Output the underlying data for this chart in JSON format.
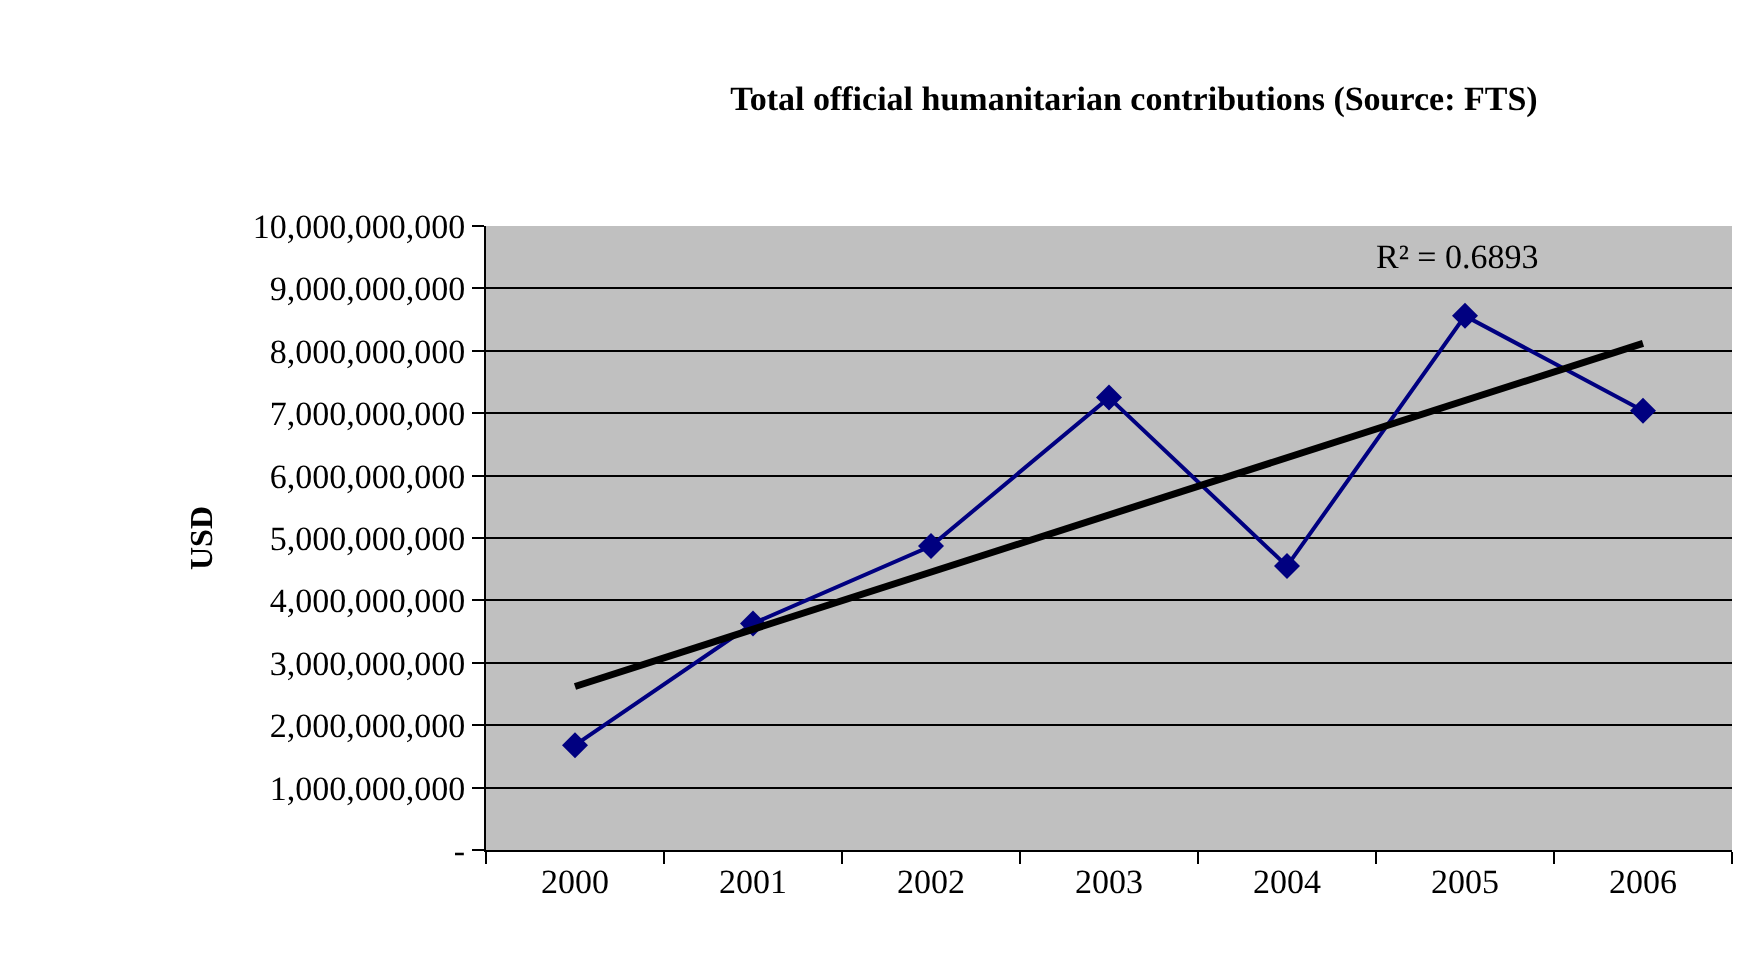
{
  "chart_data": {
    "type": "line",
    "title": "Total official humanitarian contributions (Source: FTS)",
    "ylabel": "USD",
    "categories": [
      "2000",
      "2001",
      "2002",
      "2003",
      "2004",
      "2005",
      "2006"
    ],
    "series": [
      {
        "color": "#000080",
        "values": [
          1680000000,
          3630000000,
          4870000000,
          7250000000,
          4550000000,
          8560000000,
          7040000000
        ],
        "marker": "diamond"
      },
      {
        "type": "line",
        "color": "#000000",
        "values": [
          2620000000,
          null,
          null,
          null,
          null,
          null,
          8120000000
        ],
        "marker": "none"
      }
    ],
    "annotations": [
      "R² = 0.6893"
    ],
    "ylim": [
      0,
      10000000000
    ],
    "yticks": [
      {
        "value": 0,
        "label": "-"
      },
      {
        "value": 1000000000,
        "label": "1,000,000,000"
      },
      {
        "value": 2000000000,
        "label": "2,000,000,000"
      },
      {
        "value": 3000000000,
        "label": "3,000,000,000"
      },
      {
        "value": 4000000000,
        "label": "4,000,000,000"
      },
      {
        "value": 5000000000,
        "label": "5,000,000,000"
      },
      {
        "value": 6000000000,
        "label": "6,000,000,000"
      },
      {
        "value": 7000000000,
        "label": "7,000,000,000"
      },
      {
        "value": 8000000000,
        "label": "8,000,000,000"
      },
      {
        "value": 9000000000,
        "label": "9,000,000,000"
      },
      {
        "value": 10000000000,
        "label": "10,000,000,000"
      }
    ],
    "grid": "y"
  }
}
